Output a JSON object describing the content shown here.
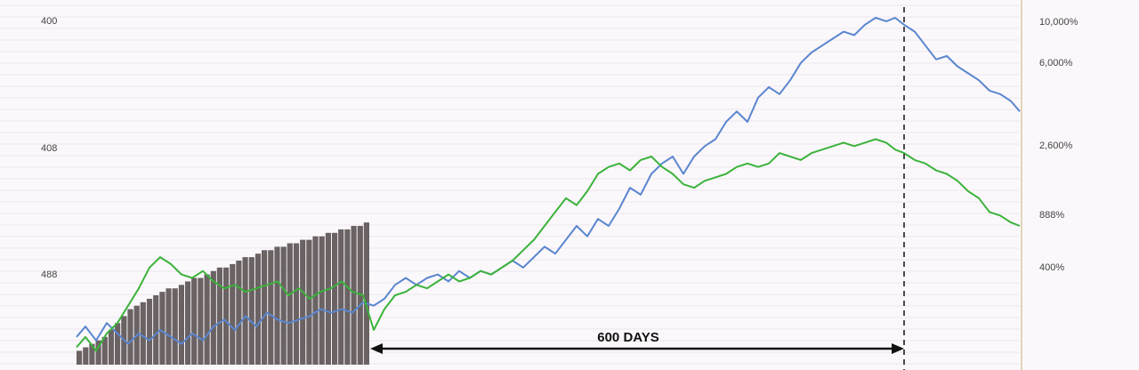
{
  "chart_data": {
    "type": "line",
    "title": "",
    "xlabel": "",
    "ylabel": "",
    "grid": true,
    "left_axis": {
      "ticks": [
        "400",
        "408",
        "488"
      ]
    },
    "right_axis": {
      "scale": "log",
      "ticks": [
        "10,000%",
        "6,000%",
        "2,600%",
        "888%",
        "400%"
      ]
    },
    "annotation": {
      "label": "600 DAYS",
      "start": 330,
      "end": 930
    },
    "peak_x": 930,
    "x_range": [
      0,
      1060
    ],
    "y_range": [
      0,
      100
    ],
    "series": [
      {
        "color": "#5a86cf",
        "points": [
          [
            0,
            8
          ],
          [
            10,
            11
          ],
          [
            22,
            7
          ],
          [
            34,
            12
          ],
          [
            46,
            9
          ],
          [
            58,
            6
          ],
          [
            70,
            9
          ],
          [
            82,
            7
          ],
          [
            94,
            10
          ],
          [
            106,
            8
          ],
          [
            118,
            6
          ],
          [
            130,
            9
          ],
          [
            142,
            7
          ],
          [
            154,
            11
          ],
          [
            166,
            13
          ],
          [
            178,
            10
          ],
          [
            190,
            14
          ],
          [
            202,
            11
          ],
          [
            214,
            15
          ],
          [
            226,
            13
          ],
          [
            238,
            12
          ],
          [
            250,
            13
          ],
          [
            262,
            14
          ],
          [
            274,
            16
          ],
          [
            286,
            15
          ],
          [
            298,
            16
          ],
          [
            310,
            15
          ],
          [
            322,
            18
          ],
          [
            334,
            17
          ],
          [
            346,
            19
          ],
          [
            358,
            23
          ],
          [
            370,
            25
          ],
          [
            382,
            23
          ],
          [
            394,
            25
          ],
          [
            406,
            26
          ],
          [
            418,
            24
          ],
          [
            430,
            27
          ],
          [
            442,
            25
          ],
          [
            454,
            27
          ],
          [
            466,
            26
          ],
          [
            478,
            28
          ],
          [
            490,
            30
          ],
          [
            502,
            28
          ],
          [
            514,
            31
          ],
          [
            526,
            34
          ],
          [
            538,
            32
          ],
          [
            550,
            36
          ],
          [
            562,
            40
          ],
          [
            574,
            37
          ],
          [
            586,
            42
          ],
          [
            598,
            40
          ],
          [
            610,
            45
          ],
          [
            622,
            51
          ],
          [
            634,
            49
          ],
          [
            646,
            55
          ],
          [
            658,
            58
          ],
          [
            670,
            60
          ],
          [
            682,
            55
          ],
          [
            694,
            60
          ],
          [
            706,
            63
          ],
          [
            718,
            65
          ],
          [
            730,
            70
          ],
          [
            742,
            73
          ],
          [
            754,
            70
          ],
          [
            766,
            77
          ],
          [
            778,
            80
          ],
          [
            790,
            78
          ],
          [
            802,
            82
          ],
          [
            814,
            87
          ],
          [
            826,
            90
          ],
          [
            838,
            92
          ],
          [
            850,
            94
          ],
          [
            862,
            96
          ],
          [
            874,
            95
          ],
          [
            886,
            98
          ],
          [
            898,
            100
          ],
          [
            910,
            99
          ],
          [
            920,
            100
          ],
          [
            930,
            98
          ],
          [
            942,
            96
          ],
          [
            954,
            92
          ],
          [
            966,
            88
          ],
          [
            978,
            89
          ],
          [
            990,
            86
          ],
          [
            1002,
            84
          ],
          [
            1014,
            82
          ],
          [
            1026,
            79
          ],
          [
            1038,
            78
          ],
          [
            1050,
            76
          ],
          [
            1060,
            73
          ]
        ]
      },
      {
        "color": "#3bb33b",
        "points": [
          [
            0,
            5
          ],
          [
            10,
            8
          ],
          [
            22,
            4
          ],
          [
            34,
            9
          ],
          [
            46,
            12
          ],
          [
            58,
            17
          ],
          [
            70,
            22
          ],
          [
            82,
            28
          ],
          [
            94,
            31
          ],
          [
            106,
            29
          ],
          [
            118,
            26
          ],
          [
            130,
            25
          ],
          [
            142,
            27
          ],
          [
            154,
            24
          ],
          [
            166,
            22
          ],
          [
            178,
            23
          ],
          [
            190,
            21
          ],
          [
            202,
            22
          ],
          [
            214,
            23
          ],
          [
            226,
            24
          ],
          [
            238,
            20
          ],
          [
            250,
            22
          ],
          [
            262,
            19
          ],
          [
            274,
            21
          ],
          [
            286,
            22
          ],
          [
            298,
            24
          ],
          [
            310,
            21
          ],
          [
            322,
            20
          ],
          [
            334,
            10
          ],
          [
            346,
            16
          ],
          [
            358,
            20
          ],
          [
            370,
            21
          ],
          [
            382,
            23
          ],
          [
            394,
            22
          ],
          [
            406,
            24
          ],
          [
            418,
            26
          ],
          [
            430,
            24
          ],
          [
            442,
            25
          ],
          [
            454,
            27
          ],
          [
            466,
            26
          ],
          [
            478,
            28
          ],
          [
            490,
            30
          ],
          [
            502,
            33
          ],
          [
            514,
            36
          ],
          [
            526,
            40
          ],
          [
            538,
            44
          ],
          [
            550,
            48
          ],
          [
            562,
            46
          ],
          [
            574,
            50
          ],
          [
            586,
            55
          ],
          [
            598,
            57
          ],
          [
            610,
            58
          ],
          [
            622,
            56
          ],
          [
            634,
            59
          ],
          [
            646,
            60
          ],
          [
            658,
            57
          ],
          [
            670,
            55
          ],
          [
            682,
            52
          ],
          [
            694,
            51
          ],
          [
            706,
            53
          ],
          [
            718,
            54
          ],
          [
            730,
            55
          ],
          [
            742,
            57
          ],
          [
            754,
            58
          ],
          [
            766,
            57
          ],
          [
            778,
            58
          ],
          [
            790,
            61
          ],
          [
            802,
            60
          ],
          [
            814,
            59
          ],
          [
            826,
            61
          ],
          [
            838,
            62
          ],
          [
            850,
            63
          ],
          [
            862,
            64
          ],
          [
            874,
            63
          ],
          [
            886,
            64
          ],
          [
            898,
            65
          ],
          [
            910,
            64
          ],
          [
            920,
            62
          ],
          [
            930,
            61
          ],
          [
            942,
            59
          ],
          [
            954,
            58
          ],
          [
            966,
            56
          ],
          [
            978,
            55
          ],
          [
            990,
            53
          ],
          [
            1002,
            50
          ],
          [
            1014,
            48
          ],
          [
            1026,
            44
          ],
          [
            1038,
            43
          ],
          [
            1050,
            41
          ],
          [
            1060,
            40
          ]
        ]
      }
    ],
    "volume": {
      "color": "#6a6263",
      "x_range": [
        0,
        330
      ],
      "values": [
        4,
        5,
        6,
        7,
        8,
        10,
        12,
        14,
        16,
        17,
        18,
        19,
        20,
        21,
        22,
        22,
        23,
        24,
        25,
        25,
        26,
        27,
        28,
        28,
        29,
        30,
        31,
        31,
        32,
        33,
        33,
        34,
        34,
        35,
        35,
        36,
        36,
        37,
        37,
        38,
        38,
        39,
        39,
        40,
        40,
        41
      ]
    }
  }
}
